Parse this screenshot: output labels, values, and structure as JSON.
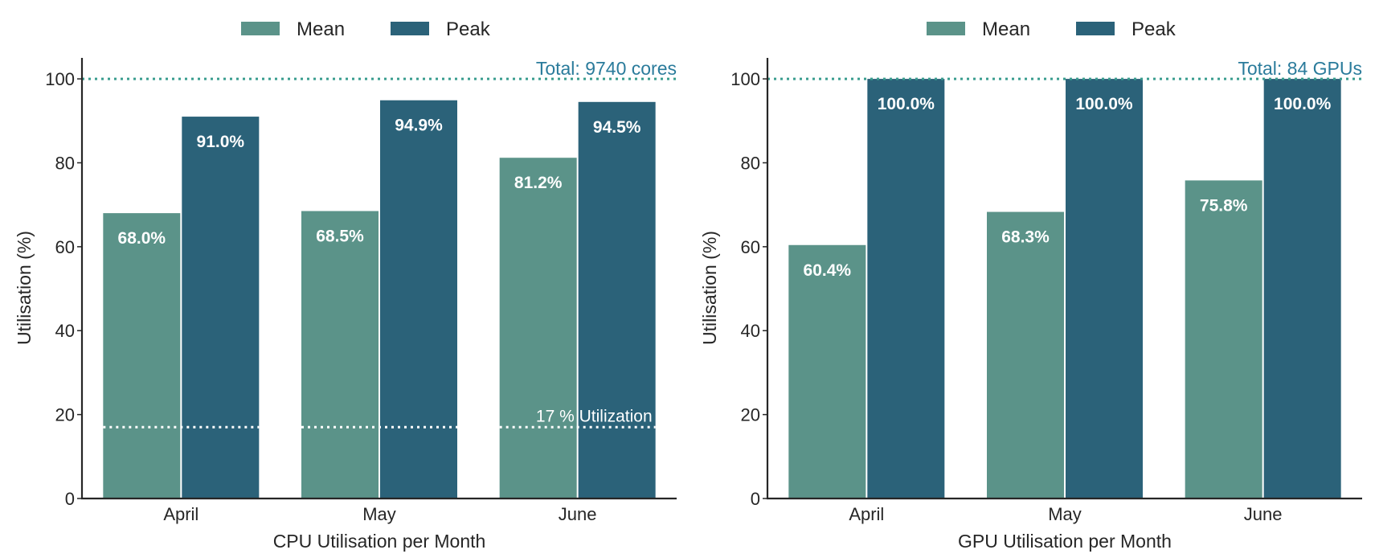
{
  "chart_data": [
    {
      "type": "bar",
      "xlabel": "CPU Utilisation per Month",
      "ylabel": "Utilisation (%)",
      "categories": [
        "April",
        "May",
        "June"
      ],
      "series": [
        {
          "name": "Mean",
          "values": [
            68.0,
            68.5,
            81.2
          ],
          "labels": [
            "68.0%",
            "68.5%",
            "81.2%"
          ],
          "color": "#5b9389"
        },
        {
          "name": "Peak",
          "values": [
            91.0,
            94.9,
            94.5
          ],
          "labels": [
            "91.0%",
            "94.9%",
            "94.5%"
          ],
          "color": "#2b6279"
        }
      ],
      "ylim": [
        0,
        105
      ],
      "yticks": [
        "0",
        "20",
        "40",
        "60",
        "80",
        "100"
      ],
      "total_line": {
        "value": 100,
        "label": "Total: 9740 cores",
        "color": "#3a9d8f",
        "label_color": "#2a7b9b"
      },
      "reference_line": {
        "value": 17,
        "label": "17 % Utilization",
        "color": "#ffffff"
      },
      "legend": "top-center",
      "grid": false
    },
    {
      "type": "bar",
      "xlabel": "GPU Utilisation per Month",
      "ylabel": "Utilisation (%)",
      "categories": [
        "April",
        "May",
        "June"
      ],
      "series": [
        {
          "name": "Mean",
          "values": [
            60.4,
            68.3,
            75.8
          ],
          "labels": [
            "60.4%",
            "68.3%",
            "75.8%"
          ],
          "color": "#5b9389"
        },
        {
          "name": "Peak",
          "values": [
            100.0,
            100.0,
            100.0
          ],
          "labels": [
            "100.0%",
            "100.0%",
            "100.0%"
          ],
          "color": "#2b6279"
        }
      ],
      "ylim": [
        0,
        105
      ],
      "yticks": [
        "0",
        "20",
        "40",
        "60",
        "80",
        "100"
      ],
      "total_line": {
        "value": 100,
        "label": "Total: 84 GPUs",
        "color": "#3a9d8f",
        "label_color": "#2a7b9b"
      },
      "legend": "top-center",
      "grid": false
    }
  ]
}
